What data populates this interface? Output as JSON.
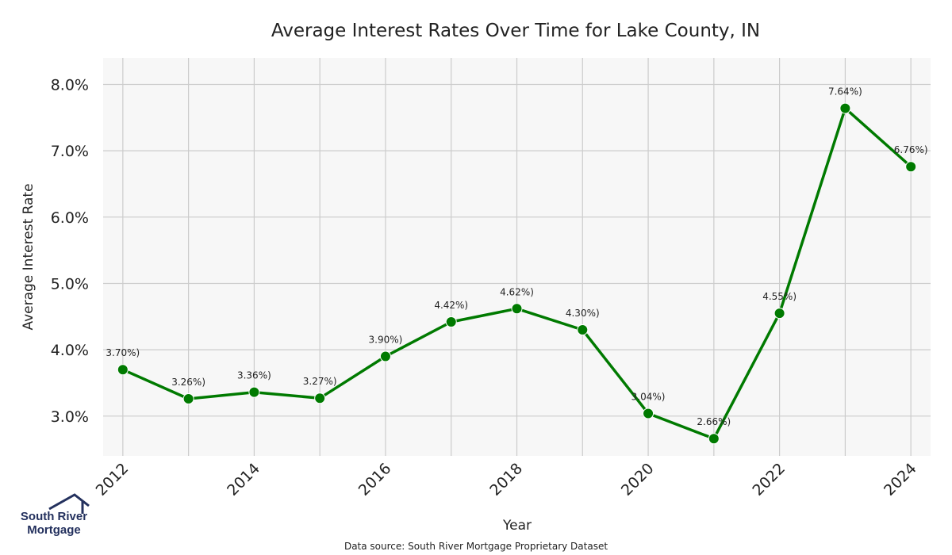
{
  "logo": {
    "line1": "South River",
    "line2": "Mortgage",
    "color": "#24315e"
  },
  "source_note": "Data source: South River Mortgage Proprietary Dataset",
  "chart_data": {
    "type": "line",
    "title": "Average Interest Rates Over Time for Lake County, IN",
    "xlabel": "Year",
    "ylabel": "Average Interest Rate",
    "x": [
      2012,
      2013,
      2014,
      2015,
      2016,
      2017,
      2018,
      2019,
      2020,
      2021,
      2022,
      2023,
      2024
    ],
    "series": [
      {
        "values": [
          3.7,
          3.26,
          3.36,
          3.27,
          3.9,
          4.42,
          4.62,
          4.3,
          3.04,
          2.66,
          4.55,
          7.64,
          6.76
        ],
        "data_labels": [
          "3.70%)",
          "3.26%)",
          "3.36%)",
          "3.27%)",
          "3.90%)",
          "4.42%)",
          "4.62%)",
          "4.30%)",
          "3.04%)",
          "2.66%)",
          "4.55%)",
          "7.64%)",
          "6.76%)"
        ],
        "color": "#007a00"
      }
    ],
    "xticks": [
      2012,
      2014,
      2016,
      2018,
      2020,
      2022,
      2024
    ],
    "xtick_labels": [
      "2012",
      "2014",
      "2016",
      "2018",
      "2020",
      "2022",
      "2024"
    ],
    "yticks": [
      3.0,
      4.0,
      5.0,
      6.0,
      7.0,
      8.0
    ],
    "ytick_labels": [
      "3.0%",
      "4.0%",
      "5.0%",
      "6.0%",
      "7.0%",
      "8.0%"
    ],
    "xlim": [
      2011.7,
      2024.3
    ],
    "ylim": [
      2.4,
      8.4
    ],
    "grid": true,
    "colors": {
      "plot_background": "#f7f7f7",
      "grid": "#cccccc"
    }
  }
}
